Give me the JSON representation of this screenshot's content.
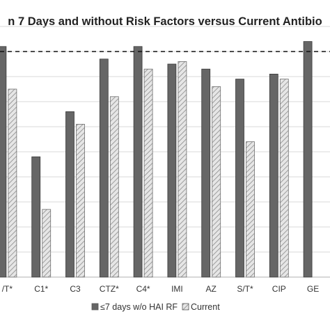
{
  "chart_data": {
    "type": "bar",
    "title": "n 7 Days and without Risk Factors versus Current Antibio",
    "categories": [
      "/T*",
      "C1*",
      "C3",
      "CTZ*",
      "C4*",
      "IMI",
      "AZ",
      "S/T*",
      "CIP",
      "GE"
    ],
    "series": [
      {
        "name": "≤7 days w/o HAI RF",
        "color": "#666666",
        "pattern": "solid",
        "values": [
          92,
          48,
          66,
          87,
          92,
          85,
          83,
          79,
          81,
          94
        ]
      },
      {
        "name": "Current",
        "color": "#d2d2d2",
        "pattern": "hatch",
        "values": [
          75,
          27,
          61,
          72,
          83,
          86,
          76,
          54,
          79,
          null
        ]
      }
    ],
    "ylim": [
      0,
      100
    ],
    "reference_line": {
      "value": 90,
      "style": "dashed"
    },
    "grid": true,
    "legend": "bottom"
  }
}
